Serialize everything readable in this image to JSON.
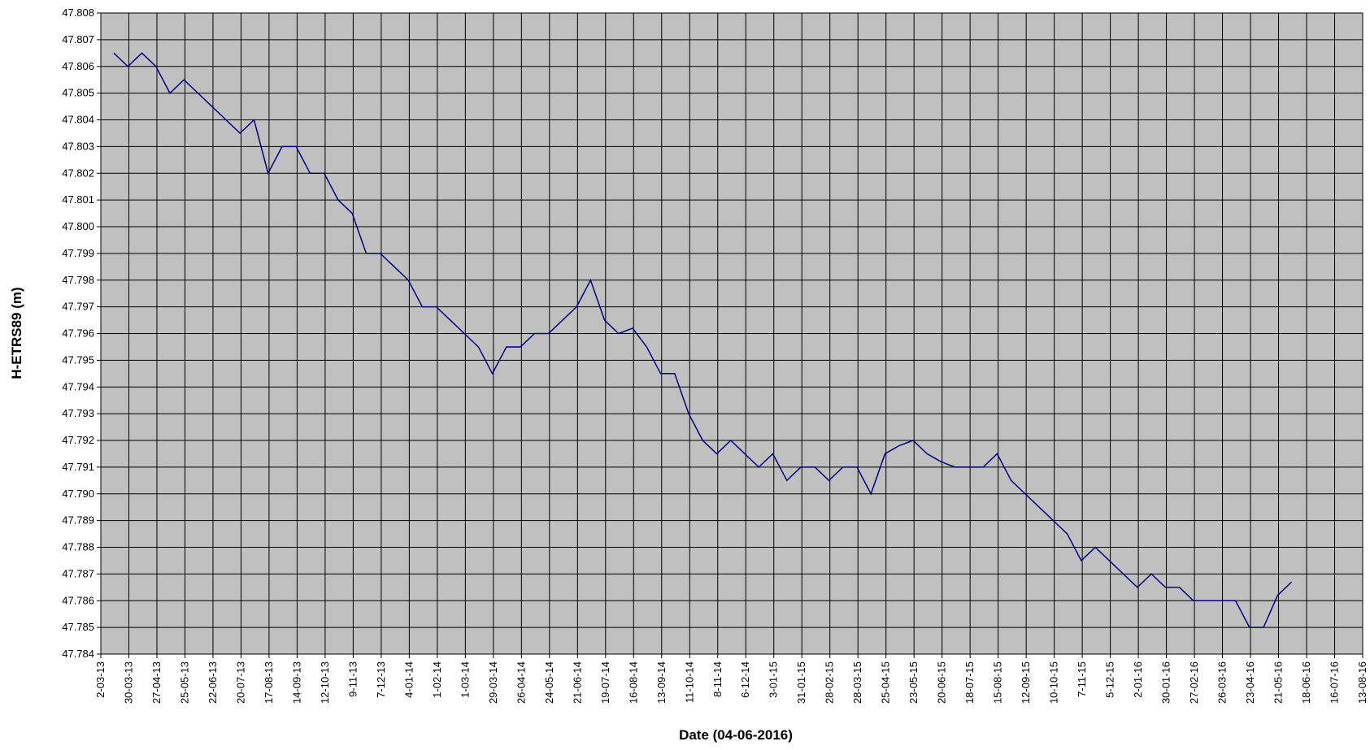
{
  "chart_data": {
    "type": "line",
    "x_label": "Date (04-06-2016)",
    "y_label": "H-ETRS89  (m)",
    "color": "#000080",
    "grid": true,
    "x": [
      "2013-03-15",
      "2013-03-29",
      "2013-04-12",
      "2013-04-26",
      "2013-05-10",
      "2013-05-24",
      "2013-06-07",
      "2013-06-21",
      "2013-07-05",
      "2013-07-19",
      "2013-08-02",
      "2013-08-16",
      "2013-08-30",
      "2013-09-13",
      "2013-09-27",
      "2013-10-11",
      "2013-10-25",
      "2013-11-08",
      "2013-11-22",
      "2013-12-06",
      "2013-12-20",
      "2014-01-03",
      "2014-01-17",
      "2014-01-31",
      "2014-02-14",
      "2014-02-28",
      "2014-03-14",
      "2014-03-28",
      "2014-04-11",
      "2014-04-25",
      "2014-05-09",
      "2014-05-23",
      "2014-06-06",
      "2014-06-20",
      "2014-07-04",
      "2014-07-18",
      "2014-08-01",
      "2014-08-15",
      "2014-08-29",
      "2014-09-12",
      "2014-09-26",
      "2014-10-10",
      "2014-10-24",
      "2014-11-07",
      "2014-11-21",
      "2014-12-05",
      "2014-12-19",
      "2015-01-02",
      "2015-01-16",
      "2015-01-30",
      "2015-02-13",
      "2015-02-27",
      "2015-03-13",
      "2015-03-27",
      "2015-04-10",
      "2015-04-24",
      "2015-05-08",
      "2015-05-22",
      "2015-06-05",
      "2015-06-19",
      "2015-07-03",
      "2015-07-17",
      "2015-07-31",
      "2015-08-14",
      "2015-08-28",
      "2015-09-11",
      "2015-09-25",
      "2015-10-09",
      "2015-10-23",
      "2015-11-06",
      "2015-11-20",
      "2015-12-04",
      "2015-12-18",
      "2016-01-01",
      "2016-01-15",
      "2016-01-29",
      "2016-02-12",
      "2016-02-26",
      "2016-03-11",
      "2016-03-25",
      "2016-04-08",
      "2016-04-22",
      "2016-05-06",
      "2016-05-20",
      "2016-06-03"
    ],
    "values": [
      47.8065,
      47.806,
      47.8065,
      47.806,
      47.805,
      47.8055,
      47.805,
      47.8045,
      47.804,
      47.8035,
      47.804,
      47.802,
      47.803,
      47.803,
      47.802,
      47.802,
      47.801,
      47.8005,
      47.799,
      47.799,
      47.7985,
      47.798,
      47.797,
      47.797,
      47.7965,
      47.796,
      47.7955,
      47.7945,
      47.7955,
      47.7955,
      47.796,
      47.796,
      47.7965,
      47.797,
      47.798,
      47.7965,
      47.796,
      47.7962,
      47.7955,
      47.7945,
      47.7945,
      47.793,
      47.792,
      47.7915,
      47.792,
      47.7915,
      47.791,
      47.7915,
      47.7905,
      47.791,
      47.791,
      47.7905,
      47.791,
      47.791,
      47.79,
      47.7915,
      47.7918,
      47.792,
      47.7915,
      47.7912,
      47.791,
      47.791,
      47.791,
      47.7915,
      47.7905,
      47.79,
      47.7895,
      47.789,
      47.7885,
      47.7875,
      47.788,
      47.7875,
      47.787,
      47.7865,
      47.787,
      47.7865,
      47.7865,
      47.786,
      47.786,
      47.786,
      47.786,
      47.785,
      47.785,
      47.7862,
      47.7867
    ],
    "xlim": [
      "2013-03-02",
      "2016-08-13"
    ],
    "xticks": [
      {
        "value": "2013-03-02",
        "label": "2-03-13"
      },
      {
        "value": "2013-03-30",
        "label": "30-03-13"
      },
      {
        "value": "2013-04-27",
        "label": "27-04-13"
      },
      {
        "value": "2013-05-25",
        "label": "25-05-13"
      },
      {
        "value": "2013-06-22",
        "label": "22-06-13"
      },
      {
        "value": "2013-07-20",
        "label": "20-07-13"
      },
      {
        "value": "2013-08-17",
        "label": "17-08-13"
      },
      {
        "value": "2013-09-14",
        "label": "14-09-13"
      },
      {
        "value": "2013-10-12",
        "label": "12-10-13"
      },
      {
        "value": "2013-11-09",
        "label": "9-11-13"
      },
      {
        "value": "2013-12-07",
        "label": "7-12-13"
      },
      {
        "value": "2014-01-04",
        "label": "4-01-14"
      },
      {
        "value": "2014-02-01",
        "label": "1-02-14"
      },
      {
        "value": "2014-03-01",
        "label": "1-03-14"
      },
      {
        "value": "2014-03-29",
        "label": "29-03-14"
      },
      {
        "value": "2014-04-26",
        "label": "26-04-14"
      },
      {
        "value": "2014-05-24",
        "label": "24-05-14"
      },
      {
        "value": "2014-06-21",
        "label": "21-06-14"
      },
      {
        "value": "2014-07-19",
        "label": "19-07-14"
      },
      {
        "value": "2014-08-16",
        "label": "16-08-14"
      },
      {
        "value": "2014-09-13",
        "label": "13-09-14"
      },
      {
        "value": "2014-10-11",
        "label": "11-10-14"
      },
      {
        "value": "2014-11-08",
        "label": "8-11-14"
      },
      {
        "value": "2014-12-06",
        "label": "6-12-14"
      },
      {
        "value": "2015-01-03",
        "label": "3-01-15"
      },
      {
        "value": "2015-01-31",
        "label": "31-01-15"
      },
      {
        "value": "2015-02-28",
        "label": "28-02-15"
      },
      {
        "value": "2015-03-28",
        "label": "28-03-15"
      },
      {
        "value": "2015-04-25",
        "label": "25-04-15"
      },
      {
        "value": "2015-05-23",
        "label": "23-05-15"
      },
      {
        "value": "2015-06-20",
        "label": "20-06-15"
      },
      {
        "value": "2015-07-18",
        "label": "18-07-15"
      },
      {
        "value": "2015-08-15",
        "label": "15-08-15"
      },
      {
        "value": "2015-09-12",
        "label": "12-09-15"
      },
      {
        "value": "2015-10-10",
        "label": "10-10-15"
      },
      {
        "value": "2015-11-07",
        "label": "7-11-15"
      },
      {
        "value": "2015-12-05",
        "label": "5-12-15"
      },
      {
        "value": "2016-01-02",
        "label": "2-01-16"
      },
      {
        "value": "2016-01-30",
        "label": "30-01-16"
      },
      {
        "value": "2016-02-27",
        "label": "27-02-16"
      },
      {
        "value": "2016-03-26",
        "label": "26-03-16"
      },
      {
        "value": "2016-04-23",
        "label": "23-04-16"
      },
      {
        "value": "2016-05-21",
        "label": "21-05-16"
      },
      {
        "value": "2016-06-18",
        "label": "18-06-16"
      },
      {
        "value": "2016-07-16",
        "label": "16-07-16"
      },
      {
        "value": "2016-08-13",
        "label": "13-08-16"
      }
    ],
    "ylim": [
      47.784,
      47.808
    ],
    "yticks": [
      47.784,
      47.785,
      47.786,
      47.787,
      47.788,
      47.789,
      {
        "value": 47.79,
        "label": "47.790"
      },
      47.791,
      47.792,
      47.793,
      47.794,
      47.795,
      47.796,
      47.797,
      47.798,
      47.799,
      {
        "value": 47.8,
        "label": "47.800"
      },
      47.801,
      47.802,
      47.803,
      47.804,
      47.805,
      47.806,
      47.807,
      47.808
    ]
  }
}
